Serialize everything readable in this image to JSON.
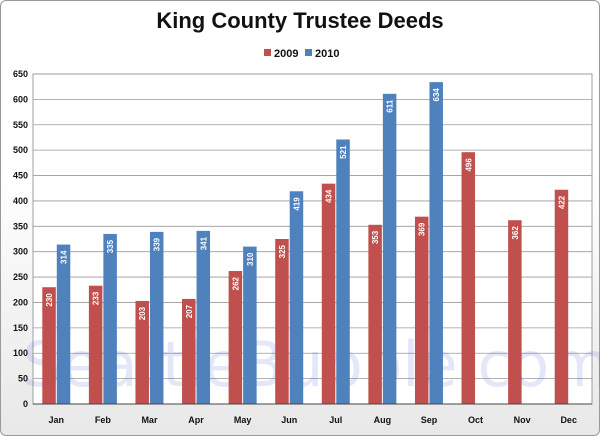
{
  "chart_data": {
    "type": "bar",
    "title": "King County Trustee Deeds",
    "categories": [
      "Jan",
      "Feb",
      "Mar",
      "Apr",
      "May",
      "Jun",
      "Jul",
      "Aug",
      "Sep",
      "Oct",
      "Nov",
      "Dec"
    ],
    "series": [
      {
        "name": "2009",
        "color": "#c0504d",
        "values": [
          230,
          233,
          203,
          207,
          262,
          325,
          434,
          353,
          369,
          496,
          362,
          422
        ]
      },
      {
        "name": "2010",
        "color": "#4f81bd",
        "values": [
          314,
          335,
          339,
          341,
          310,
          419,
          521,
          611,
          634,
          null,
          null,
          null
        ]
      }
    ],
    "ylim": [
      0,
      650
    ],
    "yticks": [
      "0",
      "50",
      "100",
      "150",
      "200",
      "250",
      "300",
      "350",
      "400",
      "450",
      "500",
      "550",
      "600",
      "650"
    ],
    "xlabel": "",
    "ylabel": "",
    "grid": true,
    "legend_position": "top-center",
    "watermark": "SeattleBubble.com"
  }
}
